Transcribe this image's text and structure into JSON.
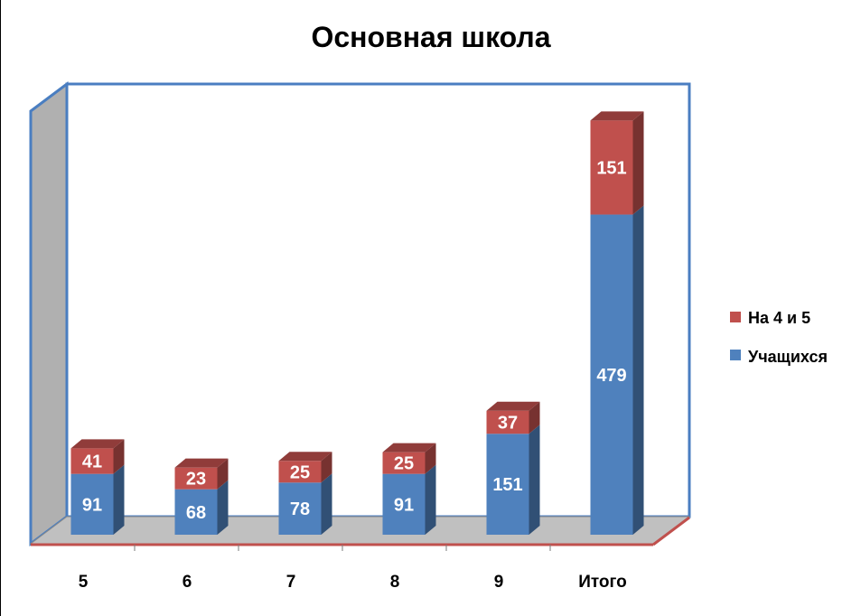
{
  "chart_data": {
    "type": "bar",
    "stacked": true,
    "title": "Основная школа",
    "categories": [
      "5",
      "6",
      "7",
      "8",
      "9",
      "Итого"
    ],
    "series": [
      {
        "name": "Учащихся",
        "values": [
          91,
          68,
          78,
          91,
          151,
          479
        ],
        "color": "#4F81BD"
      },
      {
        "name": "На 4 и 5",
        "values": [
          41,
          23,
          25,
          25,
          37,
          151
        ],
        "color": "#C0504D"
      }
    ],
    "legend": "right",
    "grid": false
  }
}
